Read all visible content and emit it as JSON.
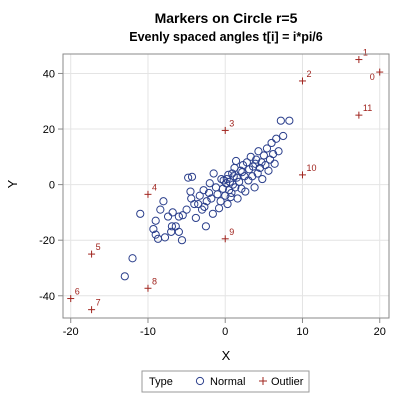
{
  "colors": {
    "normal": "#2B3F8C",
    "outlier": "#A0241E",
    "grid": "#E4E4E4",
    "frame": "#8A8A8A"
  },
  "chart_data": {
    "type": "scatter",
    "title": "Markers on Circle r=5",
    "subtitle": "Evenly spaced angles t[i] = i*pi/6",
    "xlabel": "X",
    "ylabel": "Y",
    "xlim": [
      -21,
      21.2
    ],
    "ylim": [
      -48,
      47
    ],
    "xticks": [
      -20,
      -10,
      0,
      10,
      20
    ],
    "yticks": [
      -40,
      -20,
      0,
      20,
      40
    ],
    "grid": true,
    "legend": {
      "placement": "bottom",
      "title": "Type",
      "entries": [
        "Normal",
        "Outlier"
      ]
    },
    "series": [
      {
        "name": "Normal",
        "marker": "circle",
        "points": [
          [
            -13,
            -33
          ],
          [
            -12,
            -26.5
          ],
          [
            -11,
            -10.5
          ],
          [
            -9.3,
            -16
          ],
          [
            -9,
            -13
          ],
          [
            -9,
            -18
          ],
          [
            -8.7,
            -19.5
          ],
          [
            -8.4,
            -9
          ],
          [
            -8,
            -6
          ],
          [
            -7.8,
            -19
          ],
          [
            -7.4,
            -11.5
          ],
          [
            -7,
            -17
          ],
          [
            -6.9,
            -15
          ],
          [
            -6.8,
            -10
          ],
          [
            -6.4,
            -15
          ],
          [
            -6,
            -11.5
          ],
          [
            -6,
            -17
          ],
          [
            -5.6,
            -20
          ],
          [
            -5.5,
            -11
          ],
          [
            -5,
            -9
          ],
          [
            -4.8,
            2.5
          ],
          [
            -4.5,
            -2.5
          ],
          [
            -4.4,
            -5
          ],
          [
            -4.3,
            2.8
          ],
          [
            -4,
            -7
          ],
          [
            -3.8,
            -12
          ],
          [
            -3.5,
            -7
          ],
          [
            -3.3,
            -4
          ],
          [
            -3,
            -9
          ],
          [
            -2.8,
            -2
          ],
          [
            -2.5,
            -15
          ],
          [
            -2.4,
            -6
          ],
          [
            -2.1,
            -3
          ],
          [
            -2,
            0.5
          ],
          [
            -1.8,
            -5
          ],
          [
            -1.6,
            -10.5
          ],
          [
            -1.5,
            4
          ],
          [
            -1.2,
            -1
          ],
          [
            -1,
            -3.5
          ],
          [
            -0.8,
            -8.5
          ],
          [
            -0.6,
            -6
          ],
          [
            -0.5,
            2
          ],
          [
            -0.3,
            -1.5
          ],
          [
            0,
            -4
          ],
          [
            0.1,
            0.5
          ],
          [
            0.2,
            2
          ],
          [
            0.3,
            -7
          ],
          [
            0.4,
            3.5
          ],
          [
            0.5,
            -2
          ],
          [
            0.6,
            1
          ],
          [
            0.8,
            -3
          ],
          [
            0.9,
            4
          ],
          [
            1,
            0
          ],
          [
            1.2,
            6
          ],
          [
            1.3,
            -1
          ],
          [
            1.5,
            2.5
          ],
          [
            1.6,
            -5
          ],
          [
            1.8,
            1
          ],
          [
            2,
            5
          ],
          [
            2.1,
            -1.5
          ],
          [
            2.3,
            7
          ],
          [
            2.5,
            3
          ],
          [
            2.6,
            -2.5
          ],
          [
            2.8,
            8
          ],
          [
            3,
            1.5
          ],
          [
            3.1,
            5.5
          ],
          [
            3.3,
            10
          ],
          [
            3.5,
            3
          ],
          [
            3.6,
            6.5
          ],
          [
            3.8,
            -1
          ],
          [
            4,
            9
          ],
          [
            4.2,
            4
          ],
          [
            4.3,
            12
          ],
          [
            4.5,
            6
          ],
          [
            4.7,
            8
          ],
          [
            4.8,
            2
          ],
          [
            5,
            10.5
          ],
          [
            5.2,
            7
          ],
          [
            5.4,
            13
          ],
          [
            5.6,
            5
          ],
          [
            5.8,
            9
          ],
          [
            6,
            15
          ],
          [
            6.2,
            11
          ],
          [
            6.4,
            7.5
          ],
          [
            6.6,
            16.5
          ],
          [
            6.9,
            12
          ],
          [
            7.5,
            17.5
          ],
          [
            7.2,
            23
          ],
          [
            8.3,
            23
          ],
          [
            1.1,
            3
          ],
          [
            -0.2,
            1.5
          ],
          [
            2.2,
            4.5
          ],
          [
            0.7,
            -4.5
          ],
          [
            -2.7,
            -8
          ],
          [
            3.9,
            7.5
          ],
          [
            1.4,
            8.5
          ]
        ]
      },
      {
        "name": "Outlier",
        "marker": "plus",
        "points": [
          [
            20,
            40.5
          ],
          [
            17.3,
            45
          ],
          [
            10,
            37.3
          ],
          [
            0,
            19.5
          ],
          [
            -10,
            -3.5
          ],
          [
            -17.3,
            -25
          ],
          [
            -20,
            -41
          ],
          [
            -17.3,
            -45
          ],
          [
            -10,
            -37.3
          ],
          [
            0,
            -19.5
          ],
          [
            10,
            3.5
          ],
          [
            17.3,
            25
          ]
        ],
        "labels": [
          "0",
          "1",
          "2",
          "3",
          "4",
          "5",
          "6",
          "7",
          "8",
          "9",
          "10",
          "11"
        ]
      }
    ]
  }
}
